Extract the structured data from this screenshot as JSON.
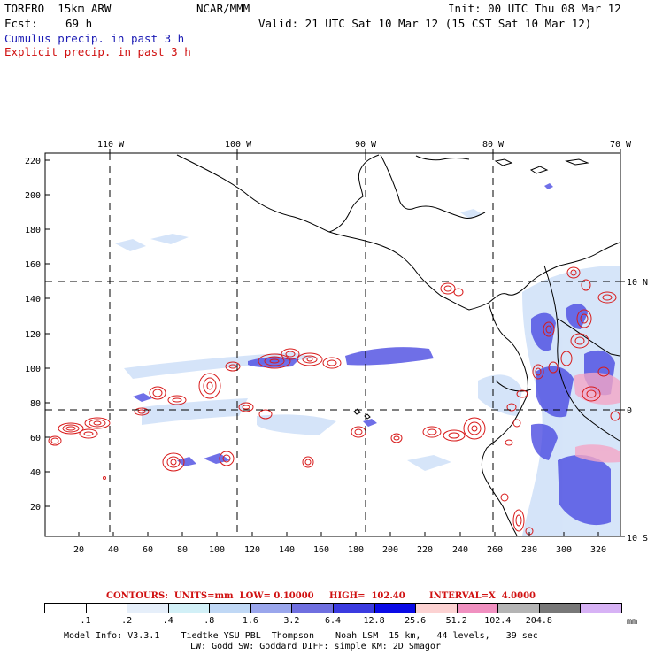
{
  "header": {
    "model": "TORERO  15km ARW",
    "org": "NCAR/MMM",
    "init": "Init: 00 UTC Thu 08 Mar 12",
    "fcst_label": "Fcst:",
    "fcst_value": "69 h",
    "valid": "Valid: 21 UTC Sat 10 Mar 12 (15 CST Sat 10 Mar 12)",
    "cumulus": "Cumulus precip. in past 3 h",
    "explicit": "Explicit precip. in past 3 h"
  },
  "map": {
    "top_lon_labels": [
      "110 W",
      "100 W",
      "90 W",
      "80 W",
      "70 W"
    ],
    "right_lat_labels": [
      "10 N",
      "0",
      "10 S"
    ],
    "y_ticks": [
      "220",
      "200",
      "180",
      "160",
      "140",
      "120",
      "100",
      "80",
      "60",
      "40",
      "20"
    ],
    "x_ticks": [
      "20",
      "40",
      "60",
      "80",
      "100",
      "120",
      "140",
      "160",
      "180",
      "200",
      "220",
      "240",
      "260",
      "280",
      "300",
      "320"
    ],
    "colors": {
      "coast": "#000000",
      "cumulus": "#2323d6",
      "explicit": "#d81b1b",
      "light_blue": "#c8dcf7"
    }
  },
  "contours": {
    "units": "CONTOURS:  UNITS=mm  LOW= 0.10000",
    "high": "HIGH=  102.40",
    "interval": "INTERVAL=X  4.0000"
  },
  "legend": {
    "labels": [
      ".1",
      ".2",
      ".4",
      ".8",
      "1.6",
      "3.2",
      "6.4",
      "12.8",
      "25.6",
      "51.2",
      "102.4",
      "204.8"
    ],
    "unit": "mm",
    "colors": [
      "#ffffff",
      "#ffffff",
      "#e6effa",
      "#d2f0f7",
      "#c0d8f5",
      "#9aa6ec",
      "#6f6fe0",
      "#3b3be0",
      "#0a0ae6",
      "#fcd2d2",
      "#f090c0",
      "#b4b4b4",
      "#787878",
      "#d7b2f5"
    ]
  },
  "footer": {
    "line1": "Model Info: V3.3.1    Tiedtke YSU PBL  Thompson    Noah LSM  15 km,   44 levels,   39 sec",
    "line2": "LW: Godd SW: Goddard DIFF: simple KM: 2D Smagor"
  }
}
